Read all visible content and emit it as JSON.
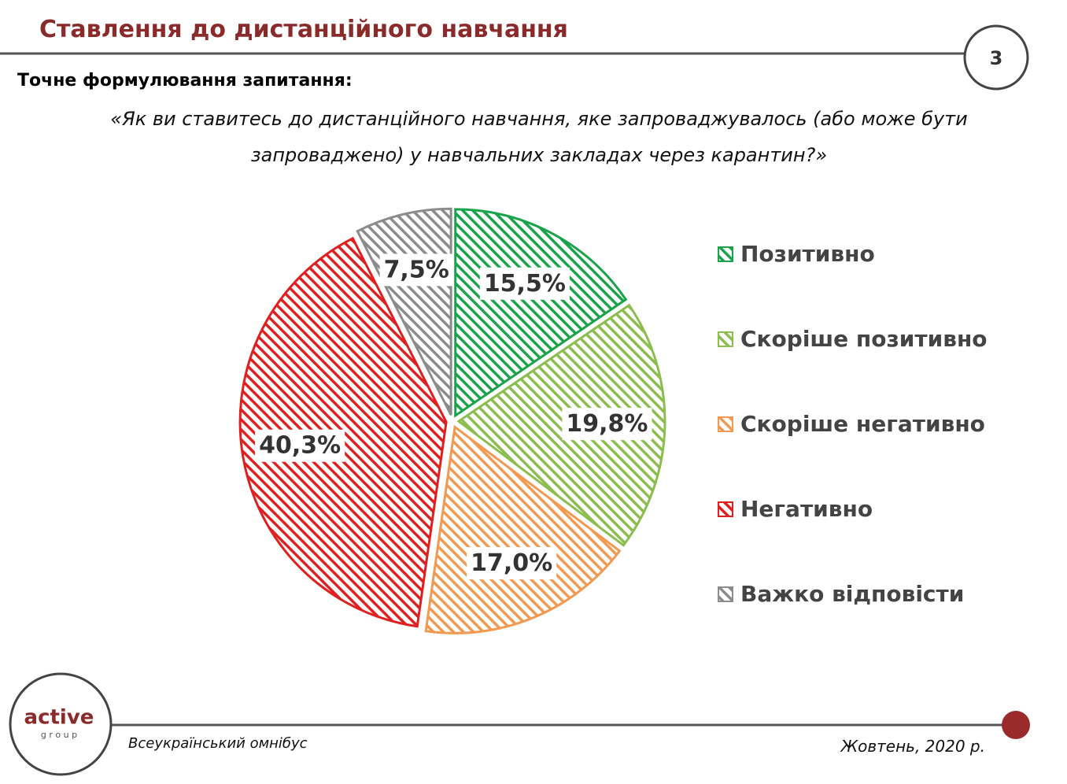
{
  "header": {
    "title": "Ставлення до дистанційного навчання",
    "page_number": "3"
  },
  "question": {
    "label": "Точне формулювання запитання:",
    "text": "«Як ви ставитесь до дистанційного навчання, яке запроваджувалось (або може бути запроваджено) у навчальних закладах через карантин?»"
  },
  "chart_data": {
    "type": "pie",
    "categories": [
      "Позитивно",
      "Скоріше позитивно",
      "Скоріше негативно",
      "Негативно",
      "Важко відповісти"
    ],
    "values": [
      15.5,
      19.8,
      17.0,
      40.3,
      7.5
    ],
    "value_labels": [
      "15,5%",
      "19,8%",
      "17,0%",
      "40,3%",
      "7,5%"
    ],
    "colors": [
      "#1aa34a",
      "#8cbd4f",
      "#f29a52",
      "#e02020",
      "#8c8c8c"
    ],
    "legend": "right"
  },
  "footer": {
    "logo_top": "active",
    "logo_bottom": "g r o u p",
    "left": "Всеукраїнський омнібус",
    "right": "Жовтень, 2020 р."
  }
}
